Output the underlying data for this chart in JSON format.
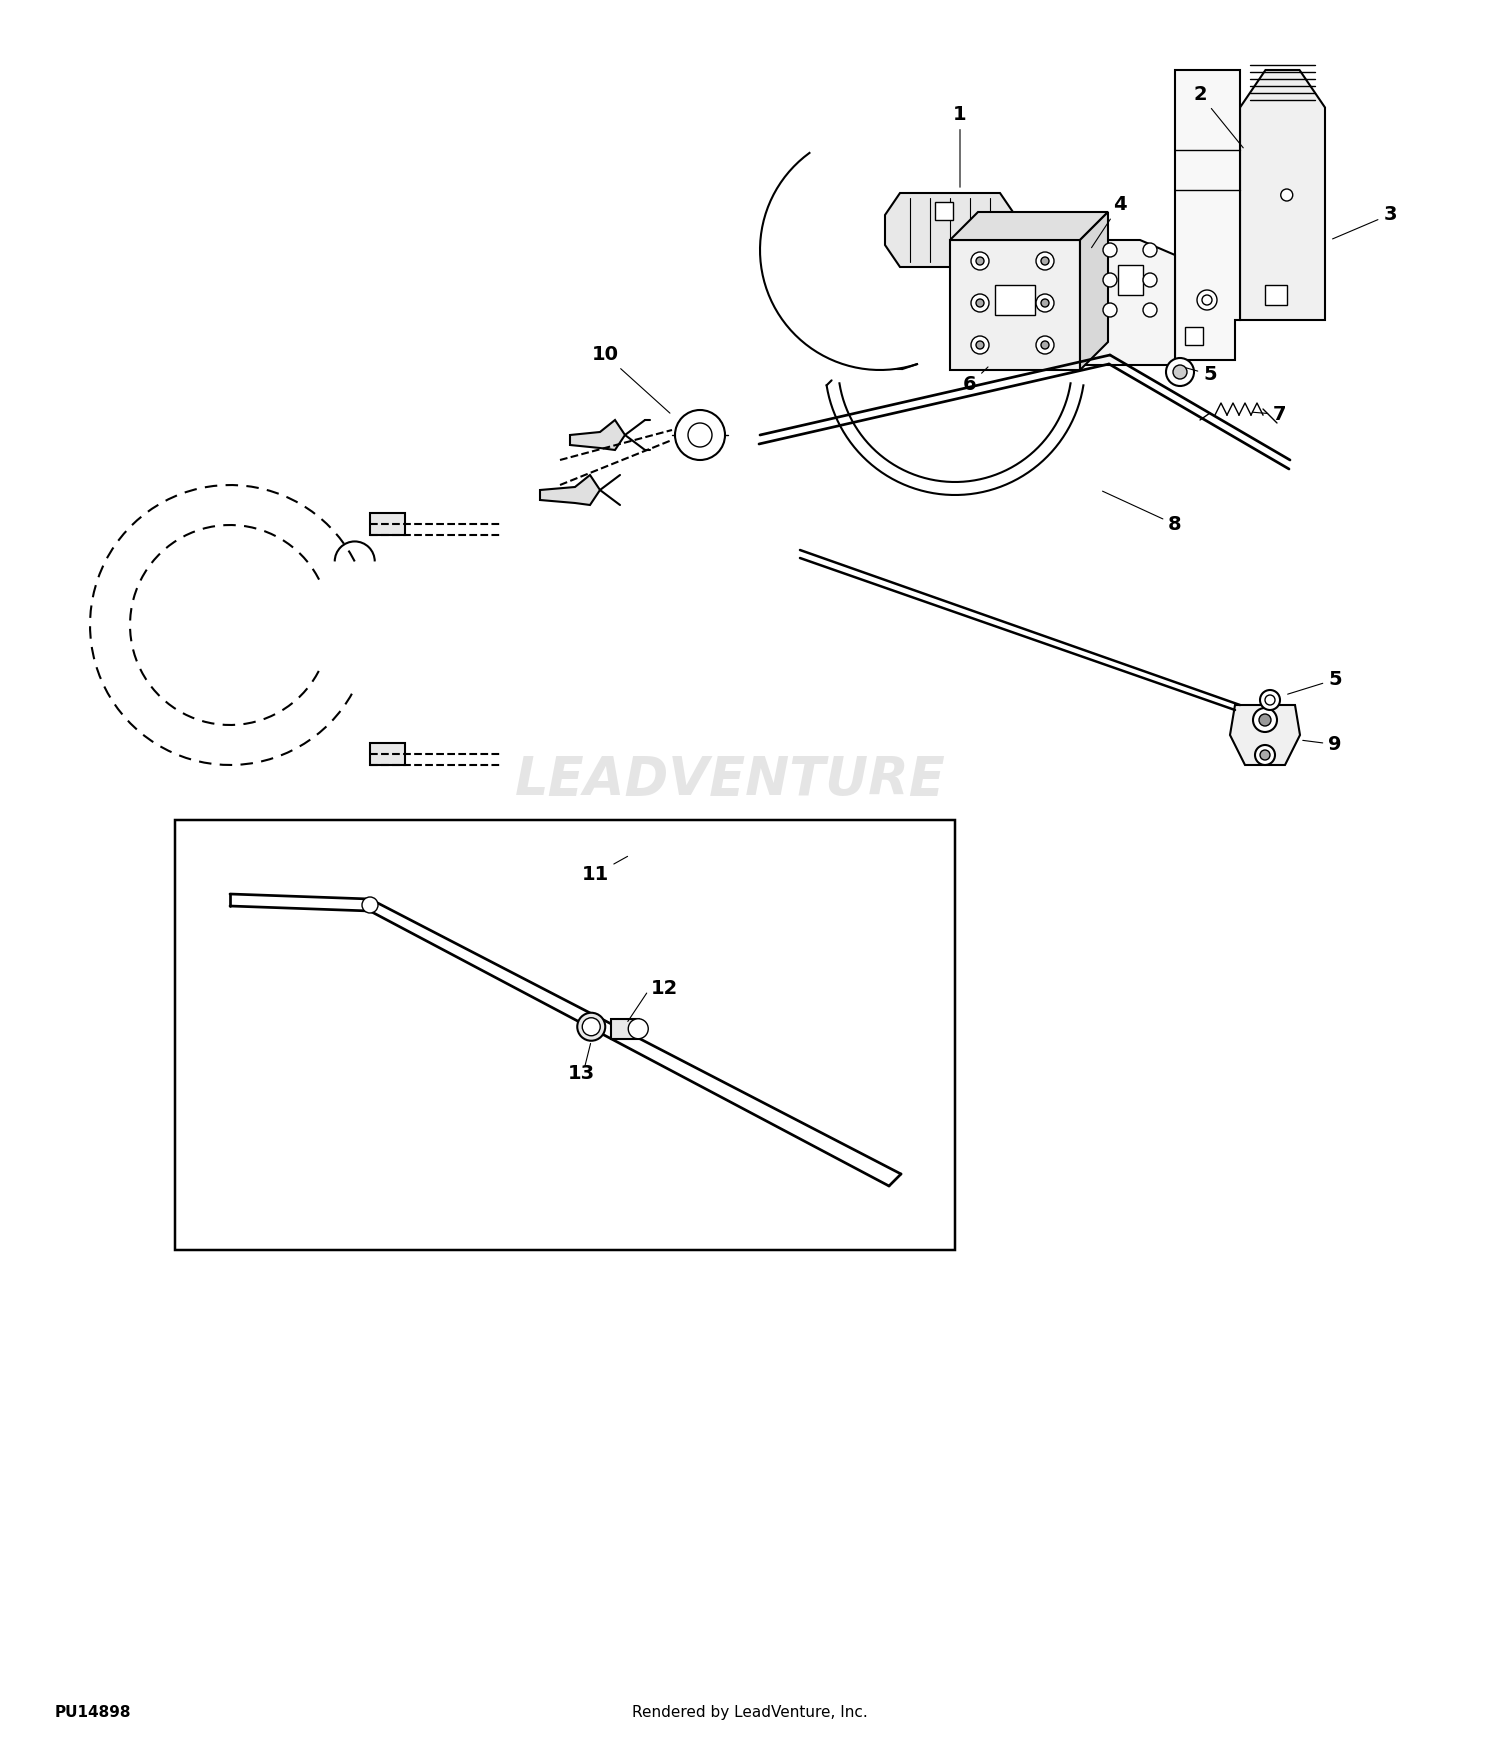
{
  "bg_color": "#ffffff",
  "line_color": "#000000",
  "watermark_color": "#cccccc",
  "watermark_text": "LEADVENTURE",
  "footer_left": "PU14898",
  "footer_center": "Rendered by LeadVenture, Inc.",
  "label_fontsize": 14,
  "footer_fontsize": 11,
  "watermark_fontsize": 38
}
